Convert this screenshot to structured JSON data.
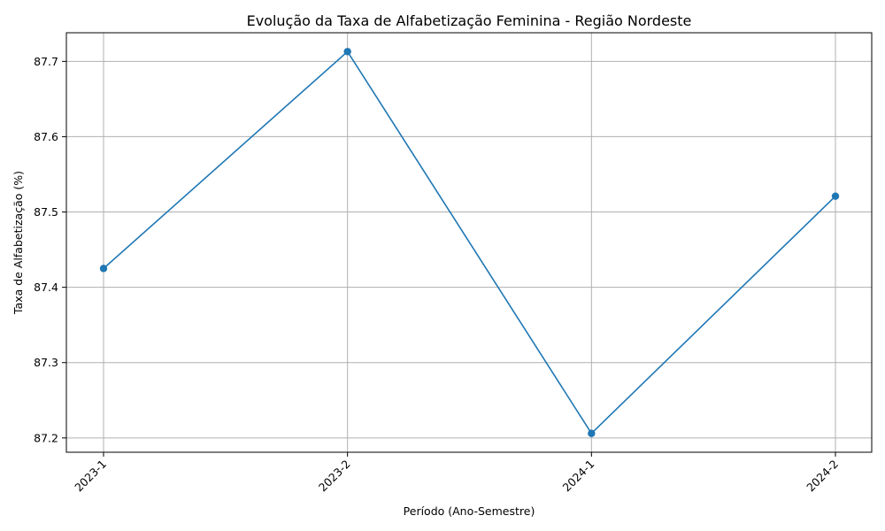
{
  "chart_data": {
    "type": "line",
    "title": "Evolução da Taxa de Alfabetização Feminina - Região Nordeste",
    "xlabel": "Período (Ano-Semestre)",
    "ylabel": "Taxa de Alfabetização (%)",
    "categories": [
      "2023-1",
      "2023-2",
      "2024-1",
      "2024-2"
    ],
    "series": [
      {
        "values": [
          87.425,
          87.713,
          87.206,
          87.521
        ]
      }
    ],
    "yticks": [
      "87.2",
      "87.3",
      "87.4",
      "87.5",
      "87.6",
      "87.7"
    ],
    "ylim": [
      87.181,
      87.738
    ],
    "grid": true,
    "marker": "circle",
    "colors": {
      "line": "#1f77b4",
      "grid": "#b0b0b0",
      "axes": "#000000"
    }
  }
}
